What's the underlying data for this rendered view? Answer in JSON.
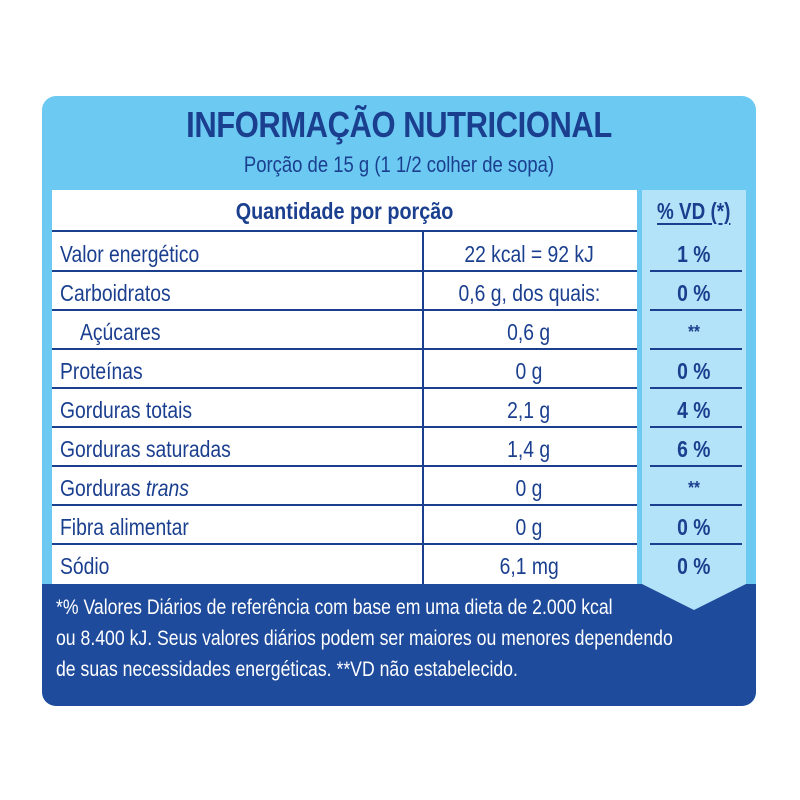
{
  "title": "INFORMAÇÃO NUTRICIONAL",
  "subtitle": "Porção de 15 g (1 1/2 colher de sopa)",
  "header": {
    "quantity": "Quantidade por porção",
    "vd": "% VD (*)"
  },
  "rows": [
    {
      "name": "Valor energético",
      "quantity": "22 kcal = 92 kJ",
      "vd": "1 %"
    },
    {
      "name": "Carboidratos",
      "quantity": "0,6 g, dos quais:",
      "vd": "0 %"
    },
    {
      "name": "Açúcares",
      "quantity": "0,6 g",
      "vd": "**"
    },
    {
      "name": "Proteínas",
      "quantity": "0 g",
      "vd": "0 %"
    },
    {
      "name": "Gorduras totais",
      "quantity": "2,1 g",
      "vd": "4 %"
    },
    {
      "name": "Gorduras saturadas",
      "quantity": "1,4 g",
      "vd": "6 %"
    },
    {
      "name_prefix": "Gorduras ",
      "name_italic": "trans",
      "quantity": "0 g",
      "vd": "**"
    },
    {
      "name": "Fibra alimentar",
      "quantity": "0 g",
      "vd": "0 %"
    },
    {
      "name": "Sódio",
      "quantity": "6,1 mg",
      "vd": "0 %"
    }
  ],
  "footer": {
    "line1": "*% Valores Diários de referência com base em uma dieta de 2.000 kcal",
    "line2": "ou 8.400 kJ. Seus valores diários podem ser maiores ou menores dependendo",
    "line3": "de suas necessidades energéticas. **VD não estabelecido."
  },
  "colors": {
    "panel": "#6cc9f2",
    "vd_column": "#b3e3f8",
    "footer": "#1e4b9c",
    "text": "#1b3f8f"
  }
}
